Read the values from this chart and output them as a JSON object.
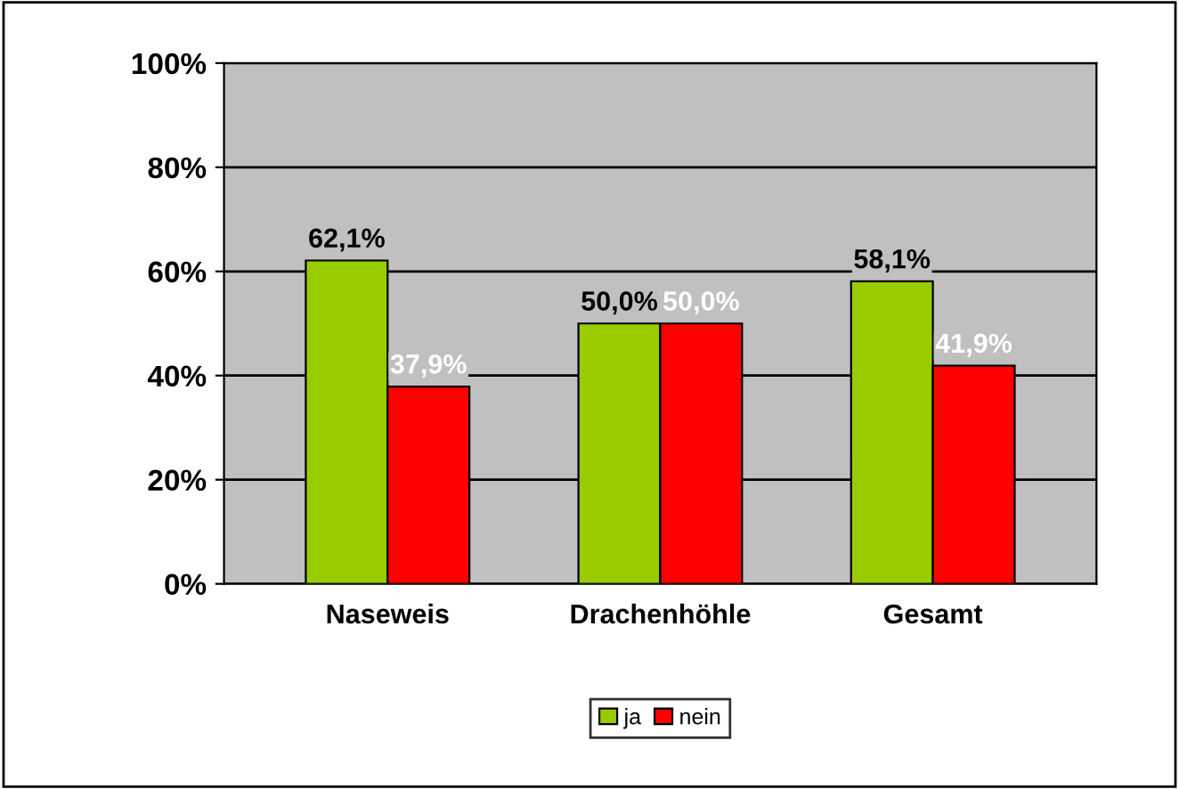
{
  "chart_data": {
    "type": "bar",
    "categories": [
      "Naseweis",
      "Drachenhöhle",
      "Gesamt"
    ],
    "series": [
      {
        "name": "ja",
        "color": "#99cc00",
        "values": [
          62.1,
          50.0,
          58.1
        ],
        "value_labels": [
          "62,1%",
          "50,0%",
          "58,1%"
        ]
      },
      {
        "name": "nein",
        "color": "#ff0000",
        "values": [
          37.9,
          50.0,
          41.9
        ],
        "value_labels": [
          "37,9%",
          "50,0%",
          "41,9%"
        ]
      }
    ],
    "ylim": [
      0,
      100
    ],
    "yticks": [
      {
        "value": 0,
        "label": "0%"
      },
      {
        "value": 20,
        "label": "20%"
      },
      {
        "value": 40,
        "label": "40%"
      },
      {
        "value": 60,
        "label": "60%"
      },
      {
        "value": 80,
        "label": "80%"
      },
      {
        "value": 100,
        "label": "100%"
      }
    ],
    "grid": "y",
    "legend": "bottom"
  }
}
